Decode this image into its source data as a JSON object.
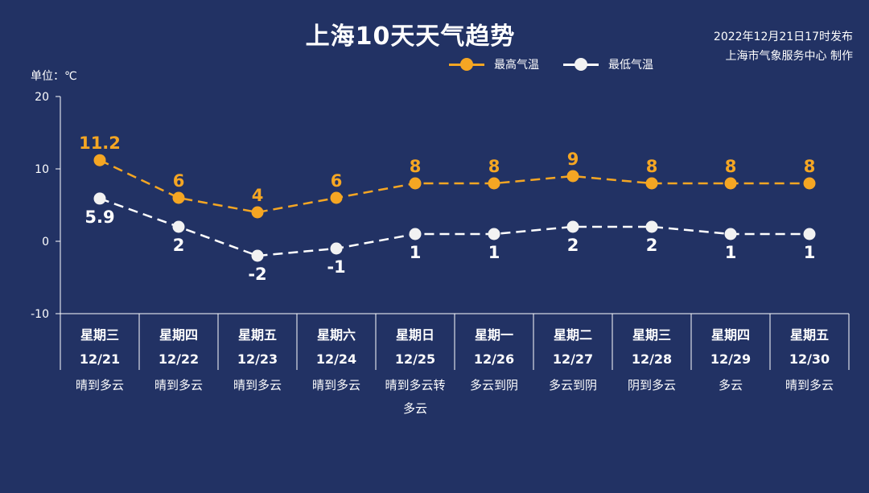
{
  "title": "上海10天天气趋势",
  "publish": {
    "line1": "2022年12月21日17时发布",
    "line2": "上海市气象服务中心 制作"
  },
  "unit_label": "单位：℃",
  "colors": {
    "background": "#223264",
    "high": "#f5a623",
    "low": "#ffffff"
  },
  "chart_data": {
    "type": "line",
    "yticks": [
      20,
      10,
      0,
      -10
    ],
    "ylim": [
      -10,
      20
    ],
    "grid": false,
    "legend_position": "top-right",
    "categories": [
      {
        "weekday": "星期三",
        "date": "12/21",
        "weather": [
          "晴到多云"
        ]
      },
      {
        "weekday": "星期四",
        "date": "12/22",
        "weather": [
          "晴到多云"
        ]
      },
      {
        "weekday": "星期五",
        "date": "12/23",
        "weather": [
          "晴到多云"
        ]
      },
      {
        "weekday": "星期六",
        "date": "12/24",
        "weather": [
          "晴到多云"
        ]
      },
      {
        "weekday": "星期日",
        "date": "12/25",
        "weather": [
          "晴到多云转",
          "多云"
        ]
      },
      {
        "weekday": "星期一",
        "date": "12/26",
        "weather": [
          "多云到阴"
        ]
      },
      {
        "weekday": "星期二",
        "date": "12/27",
        "weather": [
          "多云到阴"
        ]
      },
      {
        "weekday": "星期三",
        "date": "12/28",
        "weather": [
          "阴到多云"
        ]
      },
      {
        "weekday": "星期四",
        "date": "12/29",
        "weather": [
          "多云"
        ]
      },
      {
        "weekday": "星期五",
        "date": "12/30",
        "weather": [
          "晴到多云"
        ]
      }
    ],
    "series": [
      {
        "name": "最高气温",
        "color": "#f5a623",
        "values": [
          11.2,
          6,
          4,
          6,
          8,
          8,
          9,
          8,
          8,
          8
        ]
      },
      {
        "name": "最低气温",
        "color": "#ffffff",
        "values": [
          5.9,
          2,
          -2,
          -1,
          1,
          1,
          2,
          2,
          1,
          1
        ]
      }
    ]
  }
}
